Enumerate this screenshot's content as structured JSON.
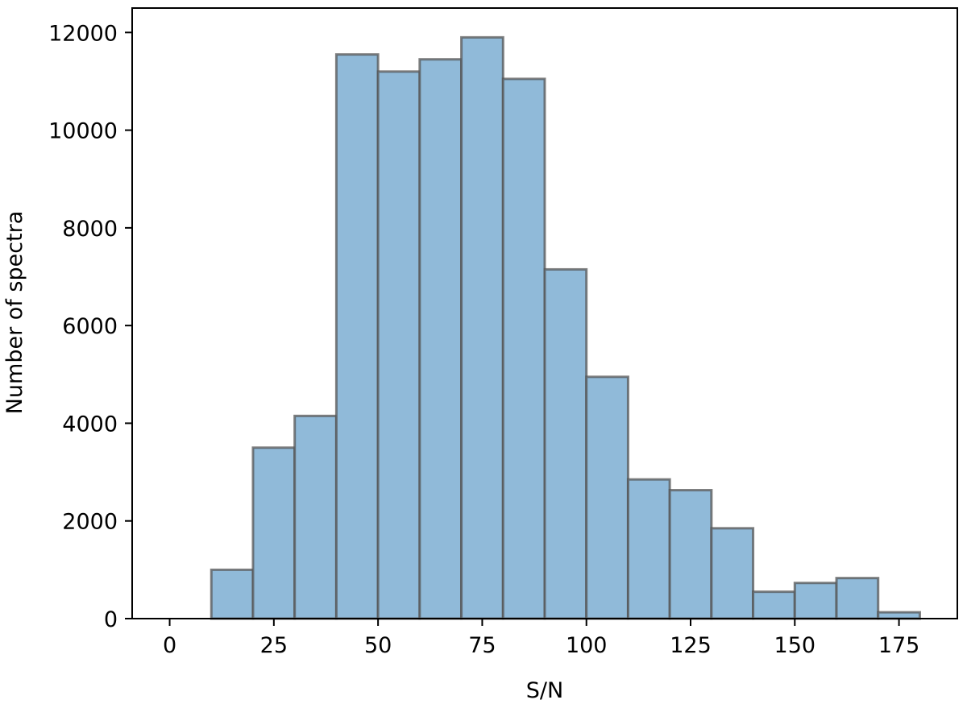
{
  "chart_data": {
    "type": "bar",
    "title": "",
    "xlabel": "S/N",
    "ylabel": "Number of spectra",
    "xlim": [
      -9,
      189
    ],
    "ylim": [
      0,
      12500
    ],
    "x_ticks": [
      0,
      25,
      50,
      75,
      100,
      125,
      150,
      175
    ],
    "y_ticks": [
      0,
      2000,
      4000,
      6000,
      8000,
      10000,
      12000
    ],
    "grid": false,
    "legend": "none",
    "bar_color": "#90bad9",
    "edge_color": "#555555",
    "bins": [
      {
        "x0": 10,
        "x1": 20,
        "value": 1000
      },
      {
        "x0": 20,
        "x1": 30,
        "value": 3500
      },
      {
        "x0": 30,
        "x1": 40,
        "value": 4150
      },
      {
        "x0": 40,
        "x1": 50,
        "value": 11550
      },
      {
        "x0": 50,
        "x1": 60,
        "value": 11200
      },
      {
        "x0": 60,
        "x1": 70,
        "value": 11450
      },
      {
        "x0": 70,
        "x1": 80,
        "value": 11900
      },
      {
        "x0": 80,
        "x1": 90,
        "value": 11050
      },
      {
        "x0": 90,
        "x1": 100,
        "value": 7150
      },
      {
        "x0": 100,
        "x1": 110,
        "value": 4950
      },
      {
        "x0": 110,
        "x1": 120,
        "value": 2850
      },
      {
        "x0": 120,
        "x1": 130,
        "value": 2630
      },
      {
        "x0": 130,
        "x1": 140,
        "value": 1850
      },
      {
        "x0": 140,
        "x1": 150,
        "value": 550
      },
      {
        "x0": 150,
        "x1": 160,
        "value": 730
      },
      {
        "x0": 160,
        "x1": 170,
        "value": 830
      },
      {
        "x0": 170,
        "x1": 180,
        "value": 130
      }
    ]
  }
}
